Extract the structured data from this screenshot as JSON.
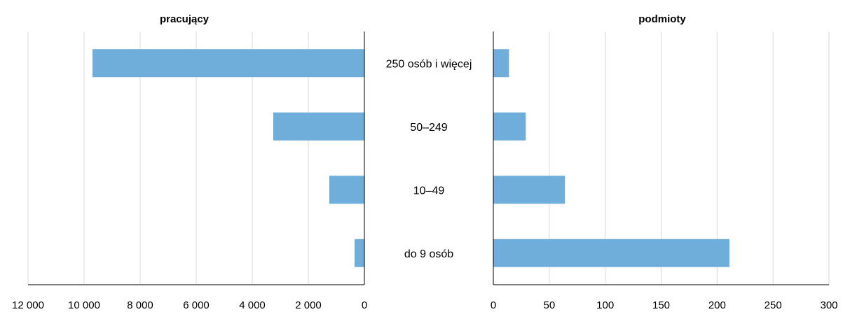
{
  "chart_data": [
    {
      "type": "bar",
      "orientation": "horizontal",
      "direction": "reversed",
      "title": "pracujący",
      "categories": [
        "250 osób i więcej",
        "50–249",
        "10–49",
        "do 9 osób"
      ],
      "values": [
        9700,
        3250,
        1250,
        350
      ],
      "xlim": [
        0,
        12000
      ],
      "tick_values": [
        12000,
        10000,
        8000,
        6000,
        4000,
        2000,
        0
      ],
      "tick_labels": [
        "12 000",
        "10 000",
        "8 000",
        "6 000",
        "4 000",
        "2 000",
        "0"
      ],
      "grid": true,
      "color": "#6faedb"
    },
    {
      "type": "bar",
      "orientation": "horizontal",
      "title": "podmioty",
      "categories": [
        "250 osób i więcej",
        "50–249",
        "10–49",
        "do 9 osób"
      ],
      "values": [
        14,
        29,
        64,
        211
      ],
      "xlim": [
        0,
        300
      ],
      "tick_values": [
        0,
        50,
        100,
        150,
        200,
        250,
        300
      ],
      "tick_labels": [
        "0",
        "50",
        "100",
        "150",
        "200",
        "250",
        "300"
      ],
      "grid": true,
      "color": "#6faedb"
    }
  ]
}
